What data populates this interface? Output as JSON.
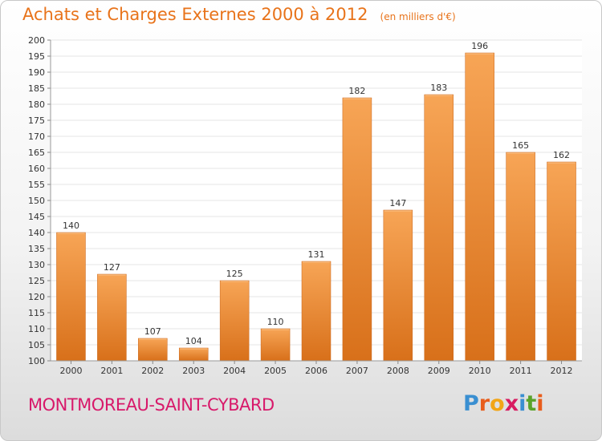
{
  "header": {
    "title": "Achats et Charges Externes 2000 à 2012",
    "unit": "(en milliers d'€)"
  },
  "footer": {
    "commune": "MONTMOREAU-SAINT-CYBARD",
    "logo_text": "Proxiti"
  },
  "colors": {
    "bar_light": "#f7a556",
    "bar_dark": "#d8701a",
    "title": "#e8731a",
    "commune": "#d8196a"
  },
  "chart_data": {
    "type": "bar",
    "title": "Achats et Charges Externes 2000 à 2012",
    "subtitle": "(en milliers d'€)",
    "categories": [
      "2000",
      "2001",
      "2002",
      "2003",
      "2004",
      "2005",
      "2006",
      "2007",
      "2008",
      "2009",
      "2010",
      "2011",
      "2012"
    ],
    "values": [
      140,
      127,
      107,
      104,
      125,
      110,
      131,
      182,
      147,
      183,
      196,
      165,
      162
    ],
    "ylim": [
      100,
      200
    ],
    "yticks": [
      100,
      105,
      110,
      115,
      120,
      125,
      130,
      135,
      140,
      145,
      150,
      155,
      160,
      165,
      170,
      175,
      180,
      185,
      190,
      195,
      200
    ],
    "grid": true,
    "data_labels": true
  }
}
